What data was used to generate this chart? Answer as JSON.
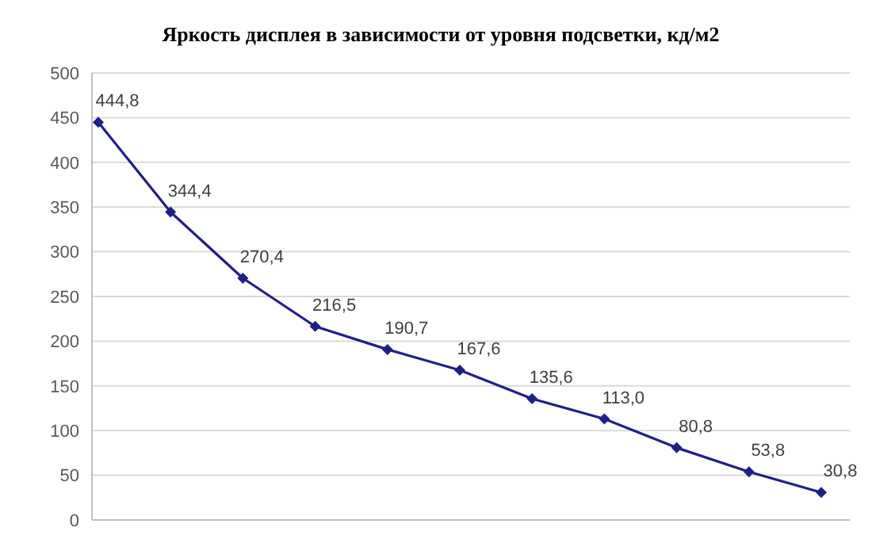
{
  "chart_data": {
    "type": "line",
    "title": "Яркость дисплея в зависимости от уровня подсветки, кд/м2",
    "categories": [
      null,
      null,
      null,
      null,
      null,
      null,
      null,
      null,
      null,
      null,
      null
    ],
    "series": [
      {
        "color": "#1f1f8c",
        "values": [
          444.8,
          344.4,
          270.4,
          216.5,
          190.7,
          167.6,
          135.6,
          113.0,
          80.8,
          53.8,
          30.8
        ],
        "value_labels": [
          "444,8",
          "344,4",
          "270,4",
          "216,5",
          "190,7",
          "167,6",
          "135,6",
          "113,0",
          "80,8",
          "53,8",
          "30,8"
        ]
      }
    ],
    "ylim": [
      0,
      500
    ],
    "yticks": [
      0,
      50,
      100,
      150,
      200,
      250,
      300,
      350,
      400,
      450,
      500
    ],
    "grid": "y",
    "marker": "diamond",
    "line_style": "solid",
    "legend": false
  }
}
